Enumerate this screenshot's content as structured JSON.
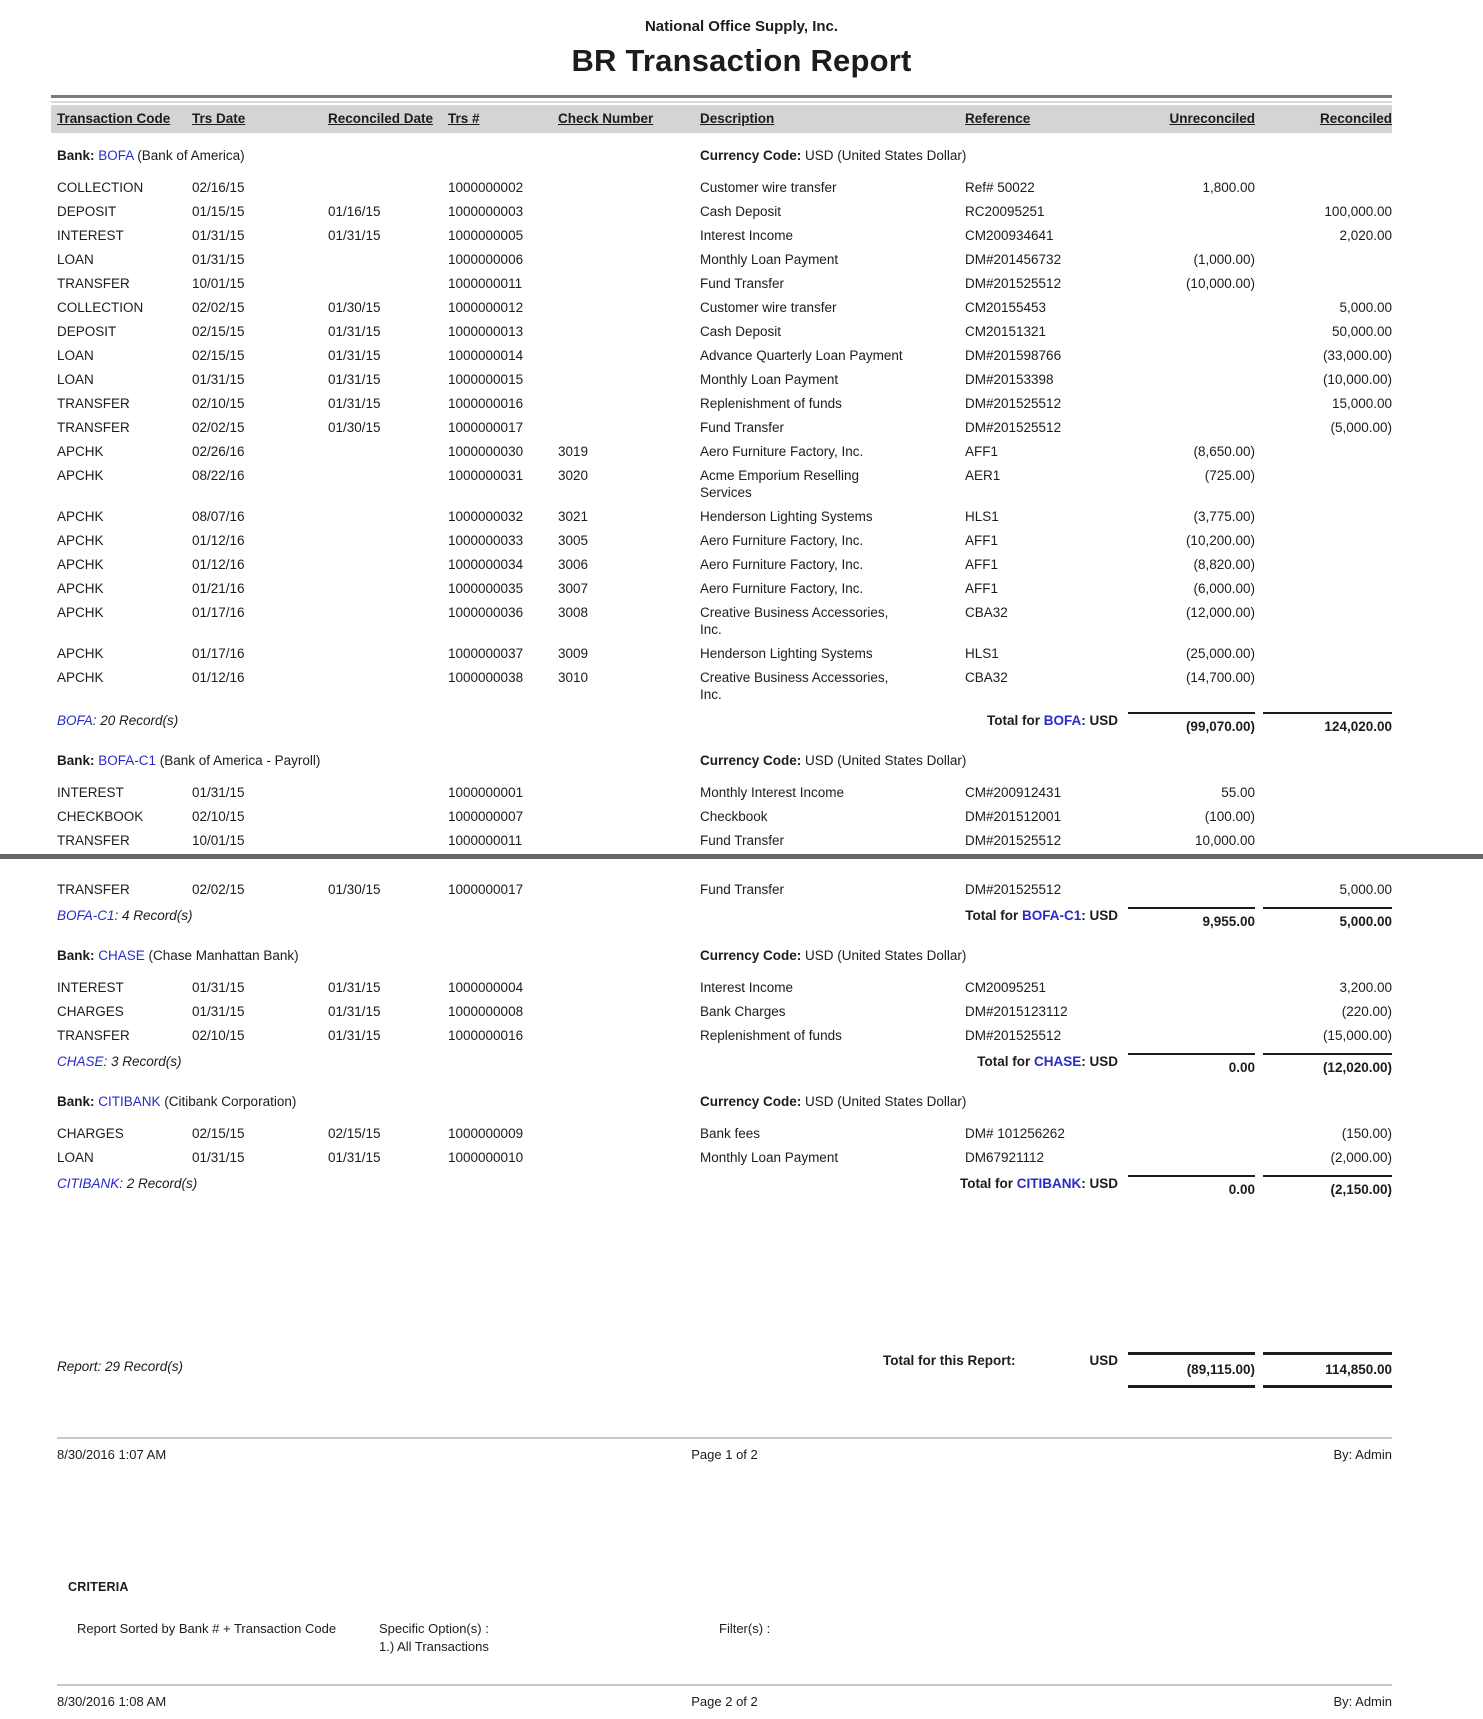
{
  "report": {
    "company": "National Office Supply, Inc.",
    "title": "BR Transaction Report",
    "colors": {
      "bank_link": "#2a2acb",
      "header_band": "#d4d4d4",
      "page_break_rule": "#666666",
      "footer_rule": "#c8c8c8",
      "text": "#1c1c1c"
    },
    "columns": [
      "Transaction Code",
      "Trs Date",
      "Reconciled Date",
      "Trs #",
      "Check Number",
      "Description",
      "Reference",
      "Unreconciled",
      "Reconciled"
    ],
    "labels": {
      "bank_prefix": "Bank: ",
      "currency_prefix": "Currency Code: ",
      "total_prefix": "Total for ",
      "total_suffix": ": USD"
    },
    "sections": [
      {
        "bank_code": "BOFA",
        "bank_name": " (Bank of America)",
        "currency": "USD (United States Dollar)",
        "records_suffix": ": 20 Record(s)",
        "total_unreconciled": "(99,070.00)",
        "total_reconciled": "124,020.00",
        "rows": [
          {
            "code": "COLLECTION",
            "trs_date": "02/16/15",
            "reconciled_date": "",
            "trs_number": "1000000002",
            "check_number": "",
            "description": "Customer wire transfer",
            "reference": "Ref# 50022",
            "unreconciled": "1,800.00",
            "reconciled": ""
          },
          {
            "code": "DEPOSIT",
            "trs_date": "01/15/15",
            "reconciled_date": "01/16/15",
            "trs_number": "1000000003",
            "check_number": "",
            "description": "Cash Deposit",
            "reference": "RC20095251",
            "unreconciled": "",
            "reconciled": "100,000.00"
          },
          {
            "code": "INTEREST",
            "trs_date": "01/31/15",
            "reconciled_date": "01/31/15",
            "trs_number": "1000000005",
            "check_number": "",
            "description": "Interest Income",
            "reference": "CM200934641",
            "unreconciled": "",
            "reconciled": "2,020.00"
          },
          {
            "code": "LOAN",
            "trs_date": "01/31/15",
            "reconciled_date": "",
            "trs_number": "1000000006",
            "check_number": "",
            "description": "Monthly Loan Payment",
            "reference": "DM#201456732",
            "unreconciled": "(1,000.00)",
            "reconciled": ""
          },
          {
            "code": "TRANSFER",
            "trs_date": "10/01/15",
            "reconciled_date": "",
            "trs_number": "1000000011",
            "check_number": "",
            "description": "Fund Transfer",
            "reference": "DM#201525512",
            "unreconciled": "(10,000.00)",
            "reconciled": ""
          },
          {
            "code": "COLLECTION",
            "trs_date": "02/02/15",
            "reconciled_date": "01/30/15",
            "trs_number": "1000000012",
            "check_number": "",
            "description": "Customer wire transfer",
            "reference": "CM20155453",
            "unreconciled": "",
            "reconciled": "5,000.00"
          },
          {
            "code": "DEPOSIT",
            "trs_date": "02/15/15",
            "reconciled_date": "01/31/15",
            "trs_number": "1000000013",
            "check_number": "",
            "description": "Cash Deposit",
            "reference": "CM20151321",
            "unreconciled": "",
            "reconciled": "50,000.00"
          },
          {
            "code": "LOAN",
            "trs_date": "02/15/15",
            "reconciled_date": "01/31/15",
            "trs_number": "1000000014",
            "check_number": "",
            "description": "Advance Quarterly Loan Payment",
            "reference": "DM#201598766",
            "unreconciled": "",
            "reconciled": "(33,000.00)"
          },
          {
            "code": "LOAN",
            "trs_date": "01/31/15",
            "reconciled_date": "01/31/15",
            "trs_number": "1000000015",
            "check_number": "",
            "description": "Monthly Loan Payment",
            "reference": "DM#20153398",
            "unreconciled": "",
            "reconciled": "(10,000.00)"
          },
          {
            "code": "TRANSFER",
            "trs_date": "02/10/15",
            "reconciled_date": "01/31/15",
            "trs_number": "1000000016",
            "check_number": "",
            "description": "Replenishment of funds",
            "reference": "DM#201525512",
            "unreconciled": "",
            "reconciled": "15,000.00"
          },
          {
            "code": "TRANSFER",
            "trs_date": "02/02/15",
            "reconciled_date": "01/30/15",
            "trs_number": "1000000017",
            "check_number": "",
            "description": "Fund Transfer",
            "reference": "DM#201525512",
            "unreconciled": "",
            "reconciled": "(5,000.00)"
          },
          {
            "code": "APCHK",
            "trs_date": "02/26/16",
            "reconciled_date": "",
            "trs_number": "1000000030",
            "check_number": "3019",
            "description": "Aero Furniture Factory, Inc.",
            "reference": "AFF1",
            "unreconciled": "(8,650.00)",
            "reconciled": ""
          },
          {
            "code": "APCHK",
            "trs_date": "08/22/16",
            "reconciled_date": "",
            "trs_number": "1000000031",
            "check_number": "3020",
            "description": "Acme Emporium Reselling\nServices",
            "reference": "AER1",
            "unreconciled": "(725.00)",
            "reconciled": ""
          },
          {
            "code": "APCHK",
            "trs_date": "08/07/16",
            "reconciled_date": "",
            "trs_number": "1000000032",
            "check_number": "3021",
            "description": "Henderson Lighting Systems",
            "reference": "HLS1",
            "unreconciled": "(3,775.00)",
            "reconciled": ""
          },
          {
            "code": "APCHK",
            "trs_date": "01/12/16",
            "reconciled_date": "",
            "trs_number": "1000000033",
            "check_number": "3005",
            "description": "Aero Furniture Factory, Inc.",
            "reference": "AFF1",
            "unreconciled": "(10,200.00)",
            "reconciled": ""
          },
          {
            "code": "APCHK",
            "trs_date": "01/12/16",
            "reconciled_date": "",
            "trs_number": "1000000034",
            "check_number": "3006",
            "description": "Aero Furniture Factory, Inc.",
            "reference": "AFF1",
            "unreconciled": "(8,820.00)",
            "reconciled": ""
          },
          {
            "code": "APCHK",
            "trs_date": "01/21/16",
            "reconciled_date": "",
            "trs_number": "1000000035",
            "check_number": "3007",
            "description": "Aero Furniture Factory, Inc.",
            "reference": "AFF1",
            "unreconciled": "(6,000.00)",
            "reconciled": ""
          },
          {
            "code": "APCHK",
            "trs_date": "01/17/16",
            "reconciled_date": "",
            "trs_number": "1000000036",
            "check_number": "3008",
            "description": "Creative Business Accessories,\nInc.",
            "reference": "CBA32",
            "unreconciled": "(12,000.00)",
            "reconciled": ""
          },
          {
            "code": "APCHK",
            "trs_date": "01/17/16",
            "reconciled_date": "",
            "trs_number": "1000000037",
            "check_number": "3009",
            "description": "Henderson Lighting Systems",
            "reference": "HLS1",
            "unreconciled": "(25,000.00)",
            "reconciled": ""
          },
          {
            "code": "APCHK",
            "trs_date": "01/12/16",
            "reconciled_date": "",
            "trs_number": "1000000038",
            "check_number": "3010",
            "description": "Creative Business Accessories,\nInc.",
            "reference": "CBA32",
            "unreconciled": "(14,700.00)",
            "reconciled": ""
          }
        ]
      },
      {
        "bank_code": "BOFA-C1",
        "bank_name": " (Bank of America - Payroll)",
        "currency": "USD (United States Dollar)",
        "records_suffix": ": 4 Record(s)",
        "total_unreconciled": "9,955.00",
        "total_reconciled": "5,000.00",
        "rows": [
          {
            "code": "INTEREST",
            "trs_date": "01/31/15",
            "reconciled_date": "",
            "trs_number": "1000000001",
            "check_number": "",
            "description": "Monthly Interest Income",
            "reference": "CM#200912431",
            "unreconciled": "55.00",
            "reconciled": ""
          },
          {
            "code": "CHECKBOOK",
            "trs_date": "02/10/15",
            "reconciled_date": "",
            "trs_number": "1000000007",
            "check_number": "",
            "description": "Checkbook",
            "reference": "DM#201512001",
            "unreconciled": "(100.00)",
            "reconciled": ""
          },
          {
            "code": "TRANSFER",
            "trs_date": "10/01/15",
            "reconciled_date": "",
            "trs_number": "1000000011",
            "check_number": "",
            "description": "Fund Transfer",
            "reference": "DM#201525512",
            "unreconciled": "10,000.00",
            "reconciled": ""
          },
          {
            "code": "TRANSFER",
            "trs_date": "02/02/15",
            "reconciled_date": "01/30/15",
            "trs_number": "1000000017",
            "check_number": "",
            "description": "Fund Transfer",
            "reference": "DM#201525512",
            "unreconciled": "",
            "reconciled": "5,000.00"
          }
        ]
      },
      {
        "bank_code": "CHASE",
        "bank_name": " (Chase Manhattan Bank)",
        "currency": "USD (United States Dollar)",
        "records_suffix": ": 3 Record(s)",
        "total_unreconciled": "0.00",
        "total_reconciled": "(12,020.00)",
        "rows": [
          {
            "code": "INTEREST",
            "trs_date": "01/31/15",
            "reconciled_date": "01/31/15",
            "trs_number": "1000000004",
            "check_number": "",
            "description": "Interest Income",
            "reference": "CM20095251",
            "unreconciled": "",
            "reconciled": "3,200.00"
          },
          {
            "code": "CHARGES",
            "trs_date": "01/31/15",
            "reconciled_date": "01/31/15",
            "trs_number": "1000000008",
            "check_number": "",
            "description": "Bank Charges",
            "reference": "DM#2015123112",
            "unreconciled": "",
            "reconciled": "(220.00)"
          },
          {
            "code": "TRANSFER",
            "trs_date": "02/10/15",
            "reconciled_date": "01/31/15",
            "trs_number": "1000000016",
            "check_number": "",
            "description": "Replenishment of funds",
            "reference": "DM#201525512",
            "unreconciled": "",
            "reconciled": "(15,000.00)"
          }
        ]
      },
      {
        "bank_code": "CITIBANK",
        "bank_name": " (Citibank Corporation)",
        "currency": "USD (United States Dollar)",
        "records_suffix": ": 2 Record(s)",
        "total_unreconciled": "0.00",
        "total_reconciled": "(2,150.00)",
        "rows": [
          {
            "code": "CHARGES",
            "trs_date": "02/15/15",
            "reconciled_date": "02/15/15",
            "trs_number": "1000000009",
            "check_number": "",
            "description": "Bank fees",
            "reference": "DM# 101256262",
            "unreconciled": "",
            "reconciled": "(150.00)"
          },
          {
            "code": "LOAN",
            "trs_date": "01/31/15",
            "reconciled_date": "01/31/15",
            "trs_number": "1000000010",
            "check_number": "",
            "description": "Monthly Loan Payment",
            "reference": "DM67921112",
            "unreconciled": "",
            "reconciled": "(2,000.00)"
          }
        ]
      }
    ],
    "page_break": {
      "section": 1,
      "after_row": 2
    },
    "grand_total": {
      "records_label": "Report: 29 Record(s)",
      "label": "Total for this Report:",
      "currency": "USD",
      "unreconciled": "(89,115.00)",
      "reconciled": "114,850.00"
    },
    "footer_page1": {
      "timestamp": "8/30/2016 1:07 AM",
      "page": "Page 1 of 2",
      "by": "By: Admin"
    },
    "criteria": {
      "heading": "CRITERIA",
      "sorted_by": "Report Sorted by Bank # + Transaction Code",
      "specific_options": "Specific Option(s) :\n1.) All Transactions",
      "filters_label": "Filter(s) :"
    },
    "footer_page2": {
      "timestamp": "8/30/2016 1:08 AM",
      "page": "Page 2 of 2",
      "by": "By: Admin"
    }
  }
}
